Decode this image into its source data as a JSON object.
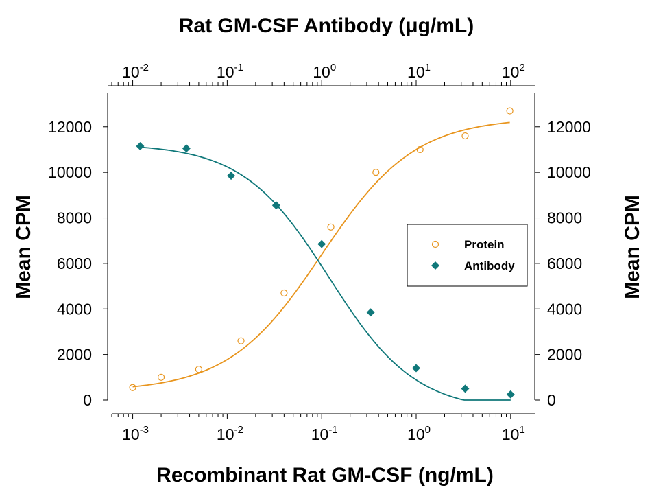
{
  "chart_data": {
    "type": "scatter",
    "top_title": "Rat GM-CSF Antibody (μg/mL)",
    "xlabel": "Recombinant Rat GM-CSF (ng/mL)",
    "ylabel_left": "Mean CPM",
    "ylabel_right": "Mean CPM",
    "x_scale": "log",
    "x_top_scale": "log",
    "xlim": [
      0.0006,
      18
    ],
    "x_top_lim": [
      0.006,
      180
    ],
    "ylim": [
      0,
      13500
    ],
    "x_ticks": [
      {
        "value": 0.001,
        "base": "10",
        "exp": "-3"
      },
      {
        "value": 0.01,
        "base": "10",
        "exp": "-2"
      },
      {
        "value": 0.1,
        "base": "10",
        "exp": "-1"
      },
      {
        "value": 1,
        "base": "10",
        "exp": "0"
      },
      {
        "value": 10,
        "base": "10",
        "exp": "1"
      }
    ],
    "x_top_ticks": [
      {
        "value": 0.01,
        "base": "10",
        "exp": "-2"
      },
      {
        "value": 0.1,
        "base": "10",
        "exp": "-1"
      },
      {
        "value": 1,
        "base": "10",
        "exp": "0"
      },
      {
        "value": 10,
        "base": "10",
        "exp": "1"
      },
      {
        "value": 100,
        "base": "10",
        "exp": "2"
      }
    ],
    "y_ticks": [
      0,
      2000,
      4000,
      6000,
      8000,
      10000,
      12000
    ],
    "y_tick_labels": [
      "0",
      "2000",
      "4000",
      "6000",
      "8000",
      "10000",
      "12000"
    ],
    "legend": {
      "position": "right-middle"
    },
    "series": [
      {
        "name": "Protein",
        "axis": "bottom",
        "marker": "open-circle",
        "color": "#E8951E",
        "x": [
          0.001,
          0.002,
          0.005,
          0.014,
          0.04,
          0.125,
          0.375,
          1.1,
          3.3,
          9.8
        ],
        "y": [
          550,
          1000,
          1350,
          2600,
          4700,
          7600,
          10000,
          11000,
          11600,
          12700
        ],
        "fit": {
          "bottom": 380,
          "top": 12400,
          "ec50": 0.1,
          "hill": 0.88
        }
      },
      {
        "name": "Antibody",
        "axis": "top",
        "marker": "filled-diamond",
        "color": "#10787A",
        "x": [
          0.012,
          0.037,
          0.11,
          0.33,
          1.0,
          3.3,
          10,
          33,
          100
        ],
        "y": [
          11150,
          11050,
          9850,
          8550,
          6850,
          3850,
          1400,
          500,
          250
        ],
        "fit": {
          "bottom": -500,
          "top": 11250,
          "ec50": 1.2,
          "hill": 0.95
        }
      }
    ]
  }
}
